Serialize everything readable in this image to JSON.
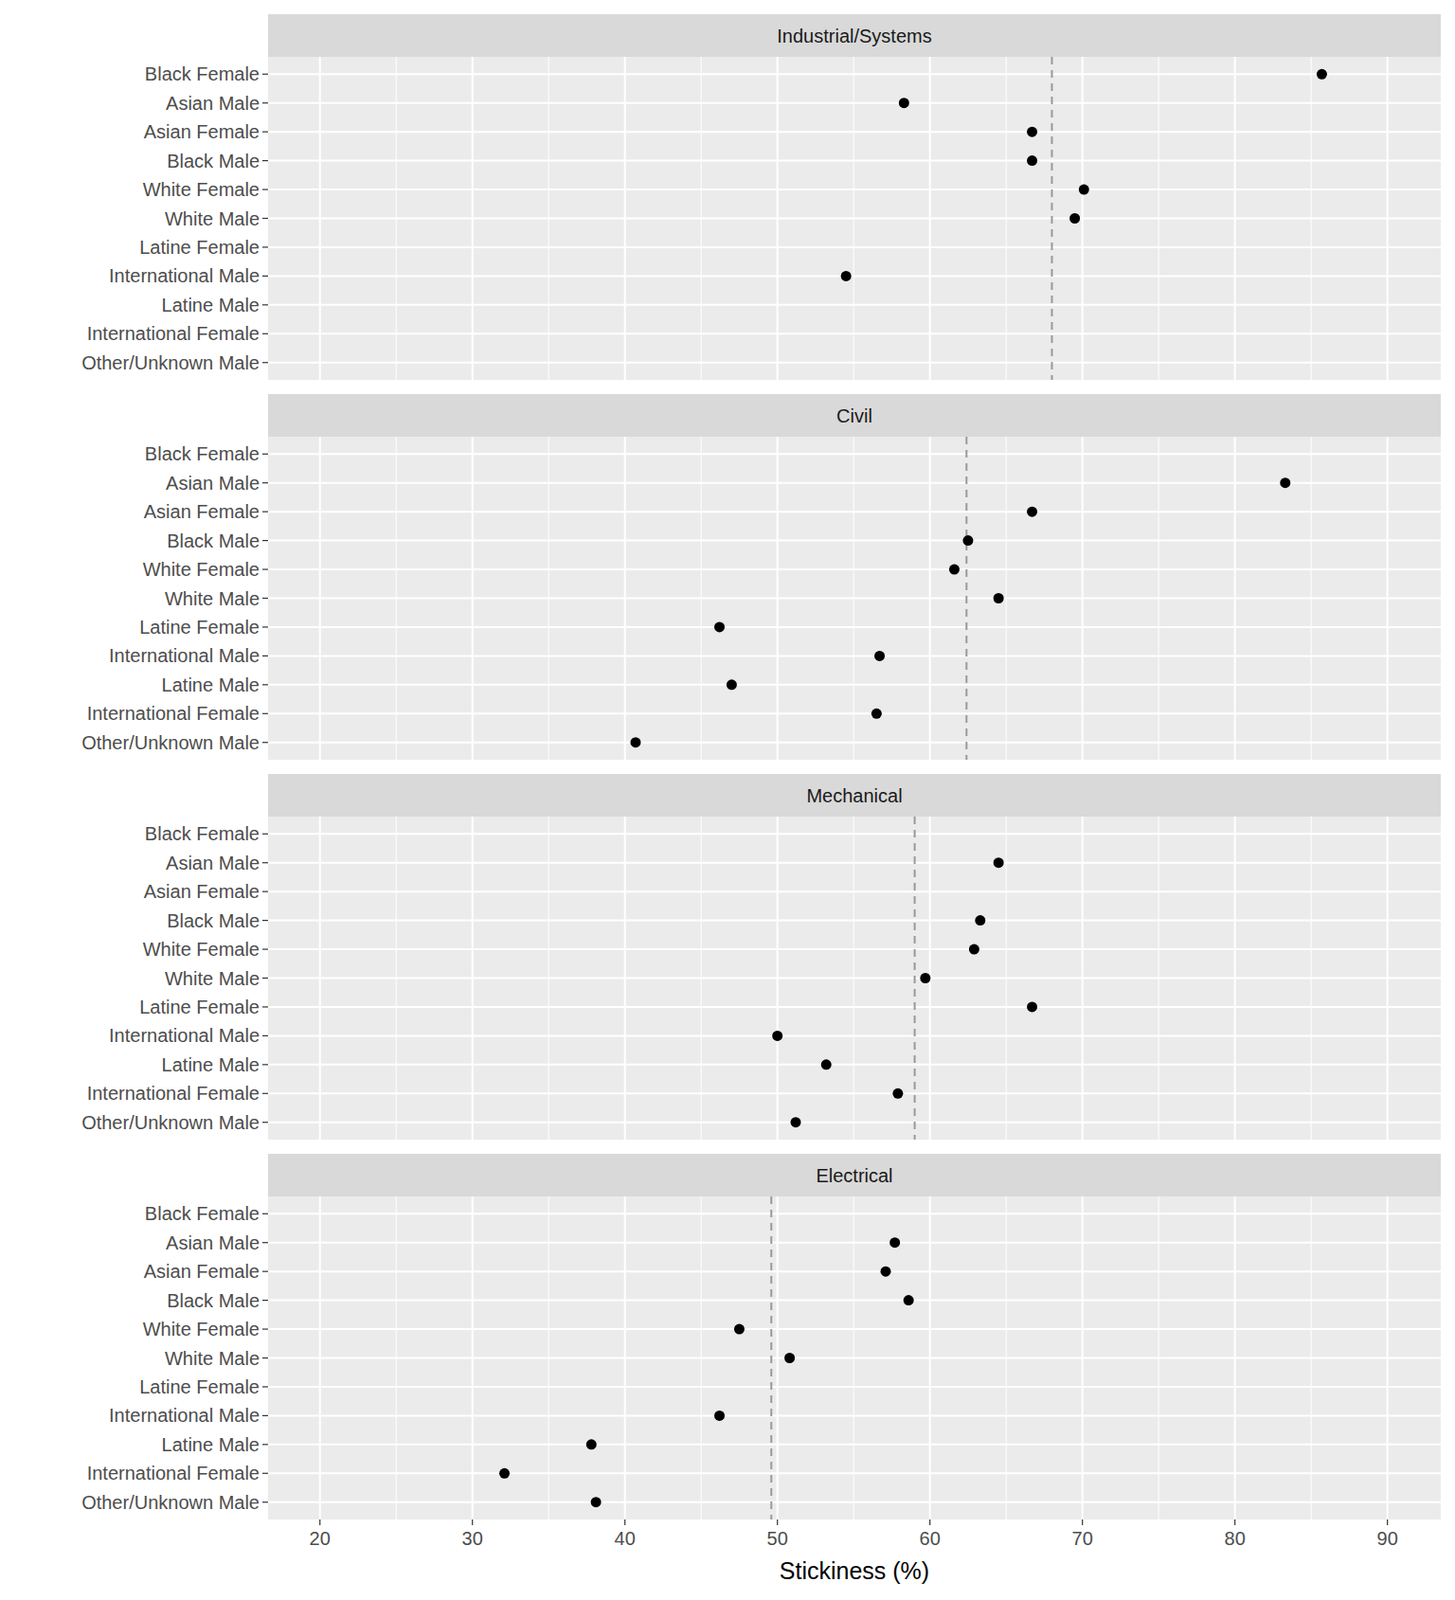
{
  "chart_data": [
    {
      "type": "dot",
      "title": "Industrial/Systems",
      "categories": [
        "Black Female",
        "Asian Male",
        "Asian Female",
        "Black Male",
        "White Female",
        "White Male",
        "Latine Female",
        "International Male",
        "Latine Male",
        "International Female",
        "Other/Unknown Male"
      ],
      "values": [
        85.7,
        58.3,
        66.7,
        66.7,
        70.1,
        69.5,
        null,
        54.5,
        null,
        null,
        null
      ],
      "reference": 68.0,
      "xlim": [
        16.6,
        93.5
      ],
      "xticks": [
        20,
        30,
        40,
        50,
        60,
        70,
        80,
        90
      ],
      "grid": true,
      "marker": "circle",
      "color": "#000000",
      "tick_labels": "y"
    },
    {
      "type": "dot",
      "title": "Civil",
      "categories": [
        "Black Female",
        "Asian Male",
        "Asian Female",
        "Black Male",
        "White Female",
        "White Male",
        "Latine Female",
        "International Male",
        "Latine Male",
        "International Female",
        "Other/Unknown Male"
      ],
      "values": [
        null,
        83.3,
        66.7,
        62.5,
        61.6,
        64.5,
        46.2,
        56.7,
        47.0,
        56.5,
        40.7
      ],
      "reference": 62.4,
      "xlim": [
        16.6,
        93.5
      ],
      "xticks": [
        20,
        30,
        40,
        50,
        60,
        70,
        80,
        90
      ],
      "grid": true,
      "marker": "circle",
      "color": "#000000",
      "tick_labels": "y"
    },
    {
      "type": "dot",
      "title": "Mechanical",
      "categories": [
        "Black Female",
        "Asian Male",
        "Asian Female",
        "Black Male",
        "White Female",
        "White Male",
        "Latine Female",
        "International Male",
        "Latine Male",
        "International Female",
        "Other/Unknown Male"
      ],
      "values": [
        null,
        64.5,
        null,
        63.3,
        62.9,
        59.7,
        66.7,
        50.0,
        53.2,
        57.9,
        51.2
      ],
      "reference": 59.0,
      "xlim": [
        16.6,
        93.5
      ],
      "xticks": [
        20,
        30,
        40,
        50,
        60,
        70,
        80,
        90
      ],
      "grid": true,
      "marker": "circle",
      "color": "#000000",
      "tick_labels": "y"
    },
    {
      "type": "dot",
      "title": "Electrical",
      "categories": [
        "Black Female",
        "Asian Male",
        "Asian Female",
        "Black Male",
        "White Female",
        "White Male",
        "Latine Female",
        "International Male",
        "Latine Male",
        "International Female",
        "Other/Unknown Male"
      ],
      "values": [
        null,
        57.7,
        57.1,
        58.6,
        47.5,
        50.8,
        null,
        46.2,
        37.8,
        32.1,
        38.1
      ],
      "reference": 49.6,
      "xlim": [
        16.6,
        93.5
      ],
      "xticks": [
        20,
        30,
        40,
        50,
        60,
        70,
        80,
        90
      ],
      "grid": true,
      "marker": "circle",
      "color": "#000000",
      "x_label": "Stickiness (%)"
    }
  ]
}
